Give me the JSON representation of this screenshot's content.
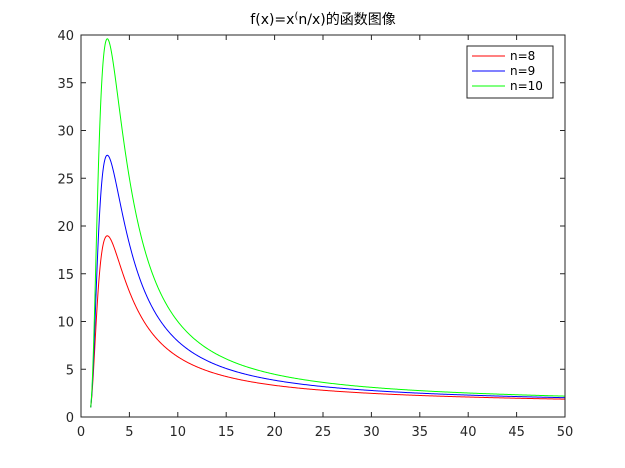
{
  "chart_data": {
    "type": "line",
    "title": "f(x)=x^(n/x)的函数图像",
    "xlabel": "",
    "ylabel": "",
    "xlim": [
      0,
      50
    ],
    "ylim": [
      0,
      40
    ],
    "xticks": [
      0,
      5,
      10,
      15,
      20,
      25,
      30,
      35,
      40,
      45,
      50
    ],
    "yticks": [
      0,
      5,
      10,
      15,
      20,
      25,
      30,
      35,
      40
    ],
    "x_domain": [
      1,
      50
    ],
    "function": "x^(n/x)",
    "legend_position": "top-right",
    "grid": false,
    "series": [
      {
        "name": "n=8",
        "color": "#ff0000",
        "n": 8,
        "sample_points": [
          [
            1,
            1
          ],
          [
            2.718,
            19.0
          ],
          [
            5,
            13.1
          ],
          [
            10,
            6.31
          ],
          [
            20,
            3.31
          ],
          [
            30,
            2.48
          ],
          [
            40,
            2.09
          ],
          [
            50,
            1.87
          ]
        ]
      },
      {
        "name": "n=9",
        "color": "#0000ff",
        "n": 9,
        "sample_points": [
          [
            1,
            1
          ],
          [
            2.718,
            27.4
          ],
          [
            5,
            18.1
          ],
          [
            10,
            7.94
          ],
          [
            20,
            3.85
          ],
          [
            30,
            2.78
          ],
          [
            40,
            2.29
          ],
          [
            50,
            2.02
          ]
        ]
      },
      {
        "name": "n=10",
        "color": "#00ff00",
        "n": 10,
        "sample_points": [
          [
            1,
            1
          ],
          [
            2.718,
            39.6
          ],
          [
            5,
            25.0
          ],
          [
            10,
            10.0
          ],
          [
            20,
            4.47
          ],
          [
            30,
            3.11
          ],
          [
            40,
            2.52
          ],
          [
            50,
            2.19
          ]
        ]
      }
    ]
  }
}
